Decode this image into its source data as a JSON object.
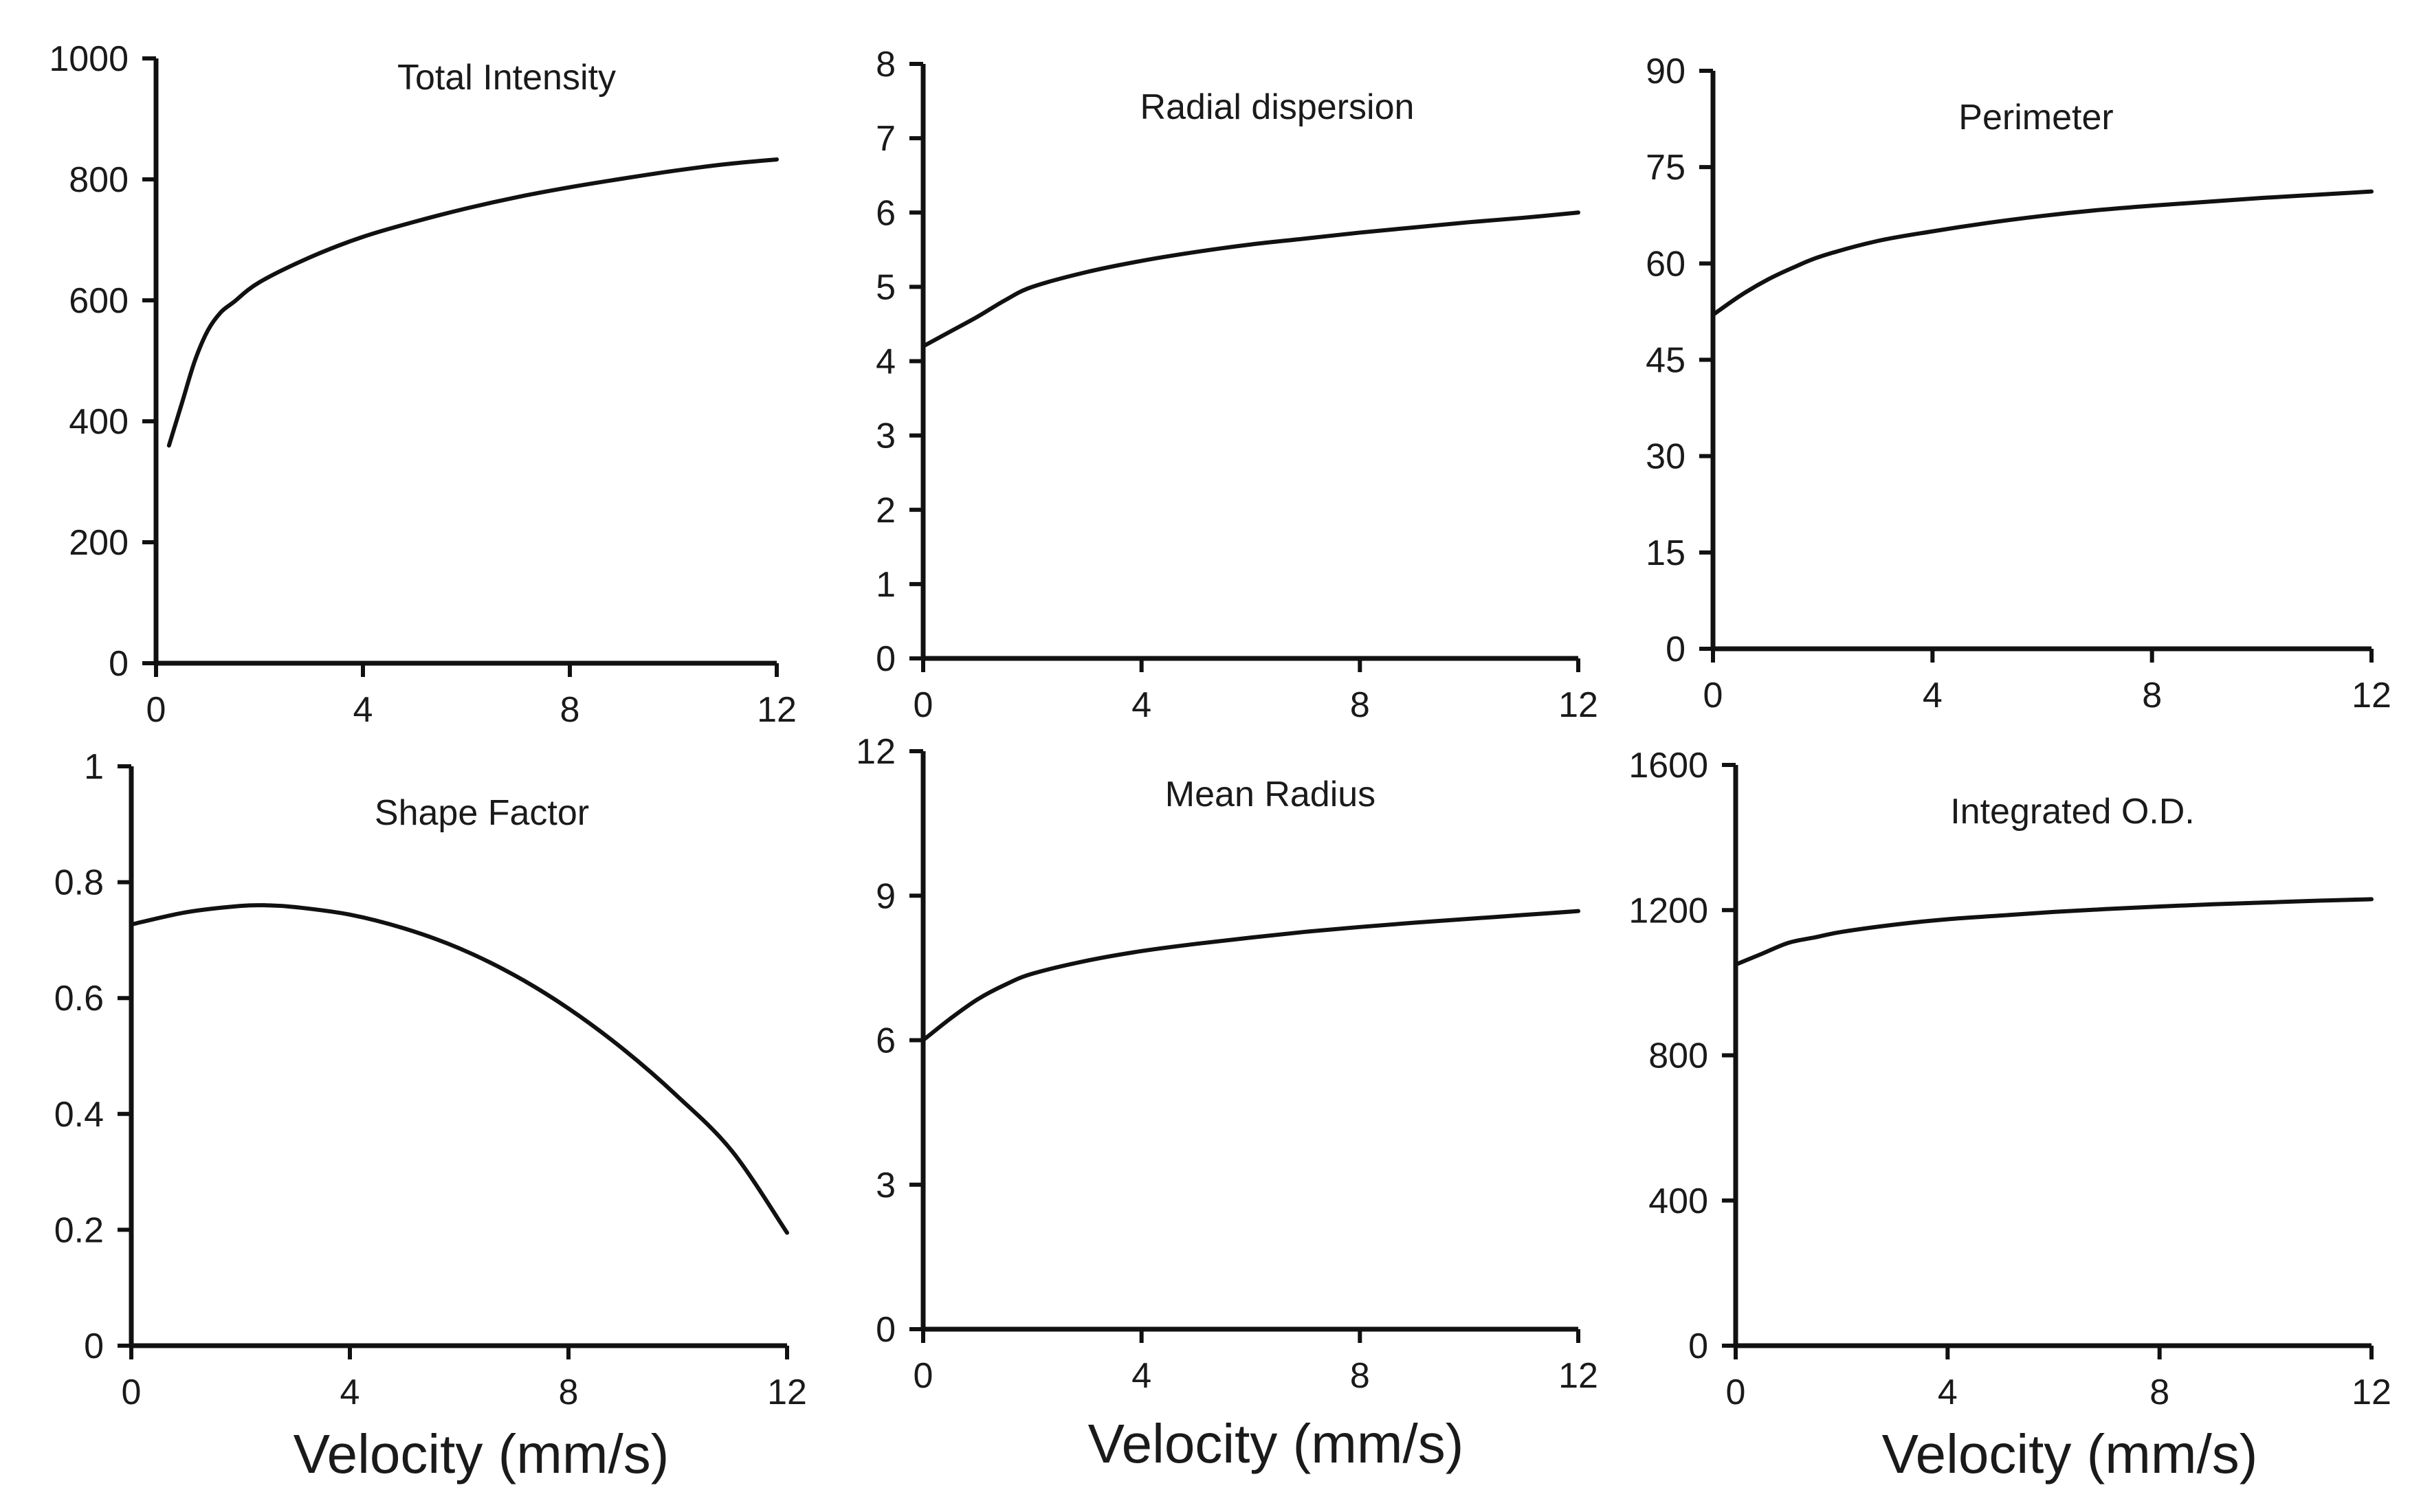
{
  "chart_data": [
    {
      "type": "line",
      "title": "Total Intensity",
      "xlabel": "",
      "ylabel": "",
      "xlim": [
        0,
        12
      ],
      "ylim": [
        0,
        1000
      ],
      "xticks": [
        "0",
        "4",
        "8",
        "12"
      ],
      "yticks": [
        "0",
        "200",
        "400",
        "600",
        "800",
        "1000"
      ],
      "series": [
        {
          "name": "Total Intensity",
          "x": [
            0.25,
            0.5,
            0.75,
            1,
            1.25,
            1.5,
            2,
            3,
            4,
            5,
            6,
            7,
            8,
            9,
            10,
            11,
            12
          ],
          "values": [
            360,
            430,
            500,
            550,
            580,
            597,
            630,
            672,
            705,
            730,
            752,
            771,
            787,
            801,
            814,
            825,
            833
          ]
        }
      ]
    },
    {
      "type": "line",
      "title": "Radial dispersion",
      "xlabel": "",
      "ylabel": "",
      "xlim": [
        0,
        12
      ],
      "ylim": [
        0,
        8
      ],
      "xticks": [
        "0",
        "4",
        "8",
        "12"
      ],
      "yticks": [
        "0",
        "1",
        "2",
        "3",
        "4",
        "5",
        "6",
        "7",
        "8"
      ],
      "series": [
        {
          "name": "Radial dispersion",
          "x": [
            0,
            0.5,
            1,
            1.5,
            2,
            3,
            4,
            5,
            6,
            7,
            8,
            9,
            10,
            11,
            12
          ],
          "values": [
            4.2,
            4.4,
            4.6,
            4.82,
            5.0,
            5.2,
            5.35,
            5.47,
            5.57,
            5.65,
            5.73,
            5.8,
            5.87,
            5.93,
            6.0
          ]
        }
      ]
    },
    {
      "type": "line",
      "title": "Perimeter",
      "xlabel": "",
      "ylabel": "",
      "xlim": [
        0,
        12
      ],
      "ylim": [
        0,
        90
      ],
      "xticks": [
        "0",
        "4",
        "8",
        "12"
      ],
      "yticks": [
        "0",
        "15",
        "30",
        "45",
        "60",
        "75",
        "90"
      ],
      "series": [
        {
          "name": "Perimeter",
          "x": [
            0,
            0.5,
            1,
            1.5,
            2,
            3,
            4,
            5,
            6,
            7,
            8,
            9,
            10,
            11,
            12
          ],
          "values": [
            52,
            55,
            57.5,
            59.5,
            61.2,
            63.5,
            65,
            66.3,
            67.4,
            68.3,
            69,
            69.6,
            70.2,
            70.7,
            71.2
          ]
        }
      ]
    },
    {
      "type": "line",
      "title": "Shape Factor",
      "xlabel": "Velocity (mm/s)",
      "ylabel": "",
      "xlim": [
        0,
        12
      ],
      "ylim": [
        0,
        1
      ],
      "xticks": [
        "0",
        "4",
        "8",
        "12"
      ],
      "yticks": [
        "0",
        "0.2",
        "0.4",
        "0.6",
        "0.8",
        "1"
      ],
      "series": [
        {
          "name": "Shape Factor",
          "x": [
            0,
            1,
            2,
            2.5,
            3,
            4,
            5,
            6,
            7,
            8,
            9,
            10,
            11,
            12
          ],
          "values": [
            0.727,
            0.748,
            0.759,
            0.76,
            0.757,
            0.744,
            0.72,
            0.686,
            0.64,
            0.582,
            0.512,
            0.43,
            0.335,
            0.195
          ]
        }
      ]
    },
    {
      "type": "line",
      "title": "Mean Radius",
      "xlabel": "Velocity (mm/s)",
      "ylabel": "",
      "xlim": [
        0,
        12
      ],
      "ylim": [
        0,
        12
      ],
      "xticks": [
        "0",
        "4",
        "8",
        "12"
      ],
      "yticks": [
        "0",
        "3",
        "6",
        "9",
        "12"
      ],
      "series": [
        {
          "name": "Mean Radius",
          "x": [
            0,
            0.5,
            1,
            1.5,
            2,
            3,
            4,
            5,
            6,
            7,
            8,
            9,
            10,
            11,
            12
          ],
          "values": [
            6.0,
            6.45,
            6.85,
            7.15,
            7.38,
            7.65,
            7.85,
            8.0,
            8.13,
            8.25,
            8.35,
            8.44,
            8.52,
            8.6,
            8.68
          ]
        }
      ]
    },
    {
      "type": "line",
      "title": "Integrated  O.D.",
      "xlabel": "Velocity (mm/s)",
      "ylabel": "",
      "xlim": [
        0,
        12
      ],
      "ylim": [
        0,
        1600
      ],
      "xticks": [
        "0",
        "4",
        "8",
        "12"
      ],
      "yticks": [
        "0",
        "400",
        "800",
        "1200",
        "1600"
      ],
      "series": [
        {
          "name": "Integrated O.D.",
          "x": [
            0,
            0.5,
            1,
            1.5,
            2,
            3,
            4,
            5,
            6,
            7,
            8,
            9,
            10,
            11,
            12
          ],
          "values": [
            1050,
            1080,
            1110,
            1125,
            1140,
            1160,
            1175,
            1185,
            1195,
            1203,
            1210,
            1216,
            1221,
            1226,
            1230
          ]
        }
      ]
    }
  ],
  "style": {
    "line_color": "#111111",
    "axis_color": "#111111"
  }
}
